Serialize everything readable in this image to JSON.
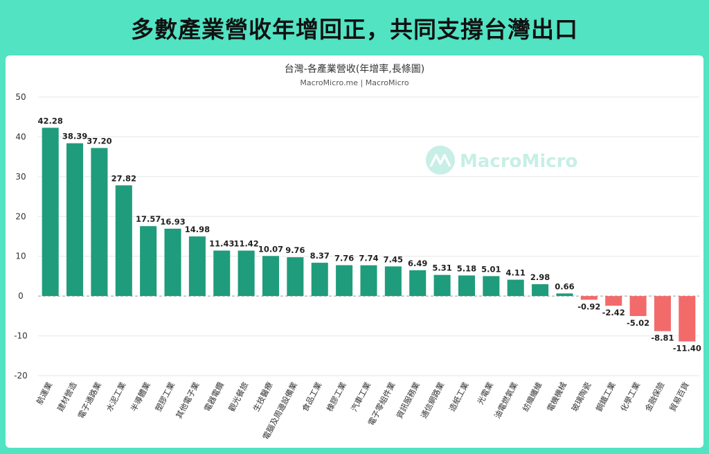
{
  "headline": "多數產業營收年增回正，共同支撐台灣出口",
  "chart_data": {
    "type": "bar",
    "title": "台灣-各產業營收(年增率,長條圖)",
    "subtitle": "MacroMicro.me | MacroMicro",
    "watermark": "MacroMicro",
    "ylim": [
      -20,
      50
    ],
    "yticks": [
      50,
      40,
      30,
      20,
      10,
      0,
      -10,
      -20
    ],
    "grid": true,
    "categories": [
      "航運業",
      "建材營造",
      "電子通路業",
      "水泥工業",
      "半導體業",
      "塑膠工業",
      "其他電子業",
      "電器電纜",
      "觀光餐旅",
      "生技醫療",
      "電腦及周邊設備業",
      "食品工業",
      "橡膠工業",
      "汽車工業",
      "電子零組件業",
      "資訊服務業",
      "通信網路業",
      "造紙工業",
      "光電業",
      "油電燃氣業",
      "紡織纖維",
      "電機機械",
      "玻璃陶瓷",
      "鋼鐵工業",
      "化學工業",
      "金融保險",
      "貿易百貨"
    ],
    "values": [
      42.28,
      38.39,
      37.2,
      27.82,
      17.57,
      16.93,
      14.98,
      11.43,
      11.42,
      10.07,
      9.76,
      8.37,
      7.76,
      7.74,
      7.45,
      6.49,
      5.31,
      5.18,
      5.01,
      4.11,
      2.98,
      0.66,
      -0.92,
      -2.42,
      -5.02,
      -8.81,
      -11.4
    ],
    "value_labels": [
      "42.28",
      "38.39",
      "37.20",
      "27.82",
      "17.57",
      "16.93",
      "14.98",
      "11.43",
      "11.42",
      "10.07",
      "9.76",
      "8.37",
      "7.76",
      "7.74",
      "7.45",
      "6.49",
      "5.31",
      "5.18",
      "5.01",
      "4.11",
      "2.98",
      "0.66",
      "-0.92",
      "-2.42",
      "-5.02",
      "-8.81",
      "-11.40"
    ],
    "colors": {
      "positive": "#1f9c7b",
      "negative": "#f36a6a",
      "grid": "#e6e6e6",
      "zero_line": "#999999",
      "watermark": "#bfece0"
    }
  }
}
